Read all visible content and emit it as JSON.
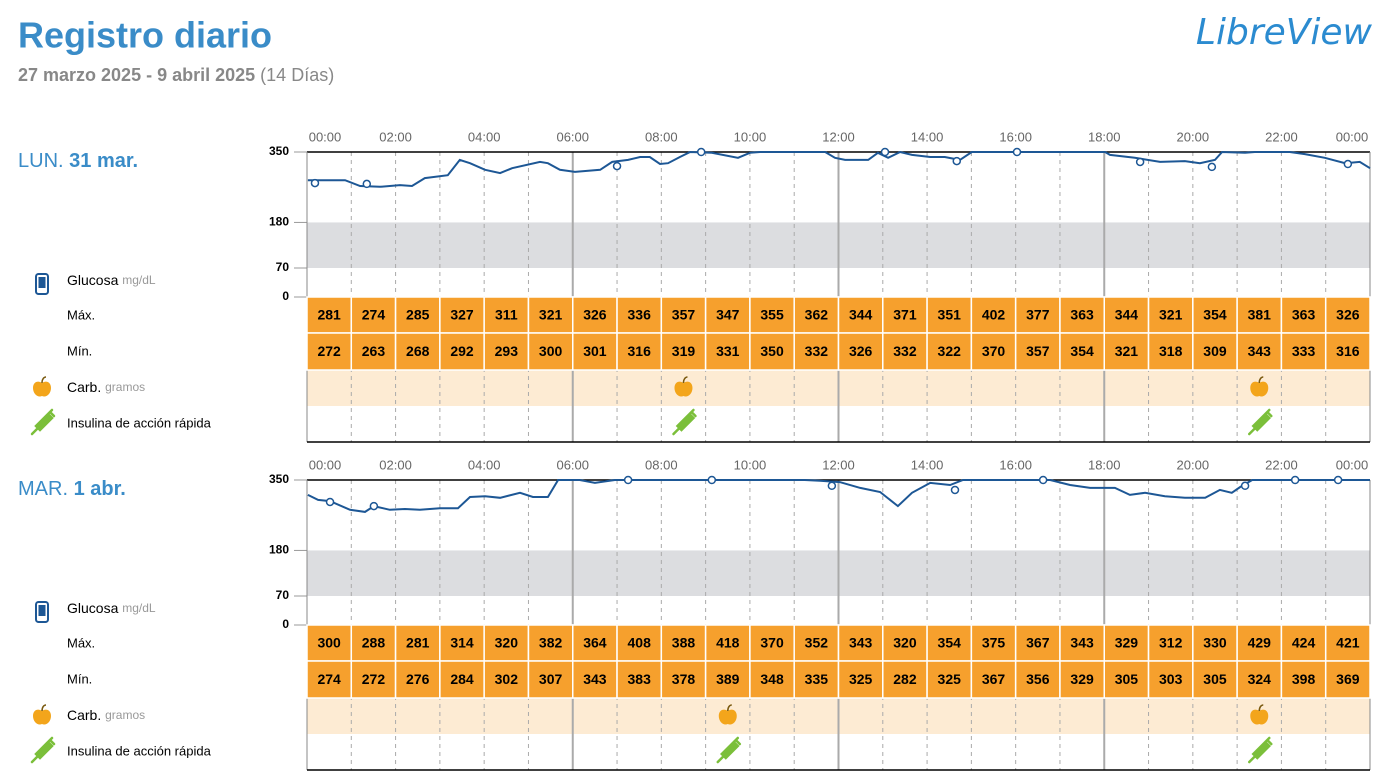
{
  "header": {
    "title": "Registro diario",
    "date_range": "27 marzo 2025 - 9 abril 2025",
    "days": "(14 Días)",
    "logo": "LibreView"
  },
  "legend": {
    "glucose": "Glucosa",
    "glucose_unit": "mg/dL",
    "max": "Máx.",
    "min": "Mín.",
    "carbs": "Carb.",
    "carbs_unit": "gramos",
    "insulin": "Insulina de acción rápida"
  },
  "chart_data": [
    {
      "type": "line",
      "day": "LUN.",
      "date": "31 mar.",
      "xlim": [
        0,
        24
      ],
      "xticks": [
        {
          "value": 0,
          "label": "00:00"
        },
        {
          "value": 2,
          "label": "02:00"
        },
        {
          "value": 4,
          "label": "04:00"
        },
        {
          "value": 6,
          "label": "06:00"
        },
        {
          "value": 8,
          "label": "08:00"
        },
        {
          "value": 10,
          "label": "10:00"
        },
        {
          "value": 12,
          "label": "12:00"
        },
        {
          "value": 14,
          "label": "14:00"
        },
        {
          "value": 16,
          "label": "16:00"
        },
        {
          "value": 18,
          "label": "18:00"
        },
        {
          "value": 20,
          "label": "20:00"
        },
        {
          "value": 22,
          "label": "22:00"
        },
        {
          "value": 24,
          "label": "00:00"
        }
      ],
      "ylim": [
        0,
        350
      ],
      "yticks": [
        0,
        70,
        180,
        350
      ],
      "target_range": [
        70,
        180
      ],
      "series": [
        {
          "color": "#1d5795",
          "x": [
            0.02,
            0.52,
            0.86,
            1.2,
            1.65,
            2.1,
            2.37,
            2.66,
            3.18,
            3.45,
            3.68,
            4.02,
            4.36,
            4.63,
            5.26,
            5.44,
            5.71,
            6.05,
            6.62,
            6.89,
            7.25,
            7.52,
            7.74,
            7.97,
            8.15,
            8.42,
            8.65,
            9.14,
            9.73,
            10.0,
            10.23,
            11.7,
            11.92,
            12.15,
            12.67,
            12.89,
            13.12,
            13.39,
            13.66,
            14.07,
            14.4,
            14.74,
            15.01,
            18.02,
            18.13,
            18.69,
            19.26,
            19.82,
            20.16,
            20.5,
            20.66,
            21.18,
            21.4,
            22.19,
            22.53,
            22.98,
            23.44,
            23.77,
            24.0
          ],
          "values": [
            282,
            282,
            282,
            268,
            266,
            270,
            268,
            287,
            294,
            331,
            323,
            307,
            299,
            311,
            326,
            323,
            307,
            302,
            307,
            326,
            331,
            338,
            338,
            321,
            323,
            338,
            350,
            348,
            336,
            348,
            350,
            350,
            336,
            331,
            331,
            348,
            336,
            350,
            343,
            338,
            338,
            331,
            350,
            350,
            343,
            336,
            326,
            328,
            323,
            331,
            350,
            348,
            350,
            350,
            345,
            336,
            323,
            326,
            311
          ]
        }
      ],
      "scans": {
        "x": [
          0.18,
          1.35,
          7.0,
          8.9,
          13.05,
          14.67,
          16.03,
          18.81,
          20.43,
          23.5
        ],
        "values": [
          275,
          273,
          316,
          350,
          350,
          328,
          350,
          326,
          314,
          321
        ]
      },
      "max": [
        281,
        274,
        285,
        327,
        311,
        321,
        326,
        336,
        357,
        347,
        355,
        362,
        344,
        371,
        351,
        402,
        377,
        363,
        344,
        321,
        354,
        381,
        363,
        326
      ],
      "min": [
        272,
        263,
        268,
        292,
        293,
        300,
        301,
        316,
        319,
        331,
        350,
        332,
        326,
        332,
        322,
        370,
        357,
        354,
        321,
        318,
        309,
        343,
        333,
        316
      ],
      "carbs": [
        8.5,
        21.5
      ],
      "insulin": [
        8.5,
        21.5
      ]
    },
    {
      "type": "line",
      "day": "MAR.",
      "date": "1 abr.",
      "xlim": [
        0,
        24
      ],
      "xticks": [
        {
          "value": 0,
          "label": "00:00"
        },
        {
          "value": 2,
          "label": "02:00"
        },
        {
          "value": 4,
          "label": "04:00"
        },
        {
          "value": 6,
          "label": "06:00"
        },
        {
          "value": 8,
          "label": "08:00"
        },
        {
          "value": 10,
          "label": "10:00"
        },
        {
          "value": 12,
          "label": "12:00"
        },
        {
          "value": 14,
          "label": "14:00"
        },
        {
          "value": 16,
          "label": "16:00"
        },
        {
          "value": 18,
          "label": "18:00"
        },
        {
          "value": 20,
          "label": "20:00"
        },
        {
          "value": 22,
          "label": "22:00"
        },
        {
          "value": 24,
          "label": "00:00"
        }
      ],
      "ylim": [
        0,
        350
      ],
      "yticks": [
        0,
        70,
        180,
        350
      ],
      "target_range": [
        70,
        180
      ],
      "series": [
        {
          "color": "#1d5795",
          "x": [
            0.02,
            0.25,
            0.52,
            0.97,
            1.31,
            1.51,
            1.87,
            2.21,
            2.55,
            3.0,
            3.23,
            3.41,
            3.68,
            4.02,
            4.36,
            4.81,
            5.1,
            5.44,
            5.67,
            6.16,
            6.5,
            6.95,
            11.24,
            11.58,
            12.03,
            12.49,
            12.94,
            13.34,
            13.66,
            14.07,
            14.52,
            14.81,
            16.78,
            17.23,
            17.68,
            18.24,
            18.58,
            18.92,
            19.37,
            19.82,
            20.28,
            20.61,
            20.88,
            21.07,
            21.34,
            24.0
          ],
          "values": [
            314,
            302,
            299,
            278,
            273,
            287,
            278,
            280,
            278,
            282,
            282,
            282,
            309,
            311,
            307,
            319,
            309,
            309,
            350,
            350,
            343,
            350,
            350,
            348,
            345,
            331,
            321,
            287,
            319,
            343,
            338,
            350,
            350,
            338,
            331,
            331,
            314,
            319,
            311,
            307,
            307,
            326,
            319,
            333,
            350,
            350
          ]
        }
      ],
      "scans": {
        "x": [
          0.52,
          1.51,
          7.25,
          9.14,
          11.85,
          14.63,
          16.62,
          21.18,
          22.31,
          23.28
        ],
        "values": [
          297,
          287,
          350,
          350,
          336,
          326,
          350,
          336,
          350,
          350
        ]
      },
      "max": [
        300,
        288,
        281,
        314,
        320,
        382,
        364,
        408,
        388,
        418,
        370,
        352,
        343,
        320,
        354,
        375,
        367,
        343,
        329,
        312,
        330,
        429,
        424,
        421
      ],
      "min": [
        274,
        272,
        276,
        284,
        302,
        307,
        343,
        383,
        378,
        389,
        348,
        335,
        325,
        282,
        325,
        367,
        356,
        329,
        305,
        303,
        305,
        324,
        398,
        369
      ],
      "carbs": [
        9.5,
        21.5
      ],
      "insulin": [
        9.5,
        21.5
      ]
    }
  ]
}
